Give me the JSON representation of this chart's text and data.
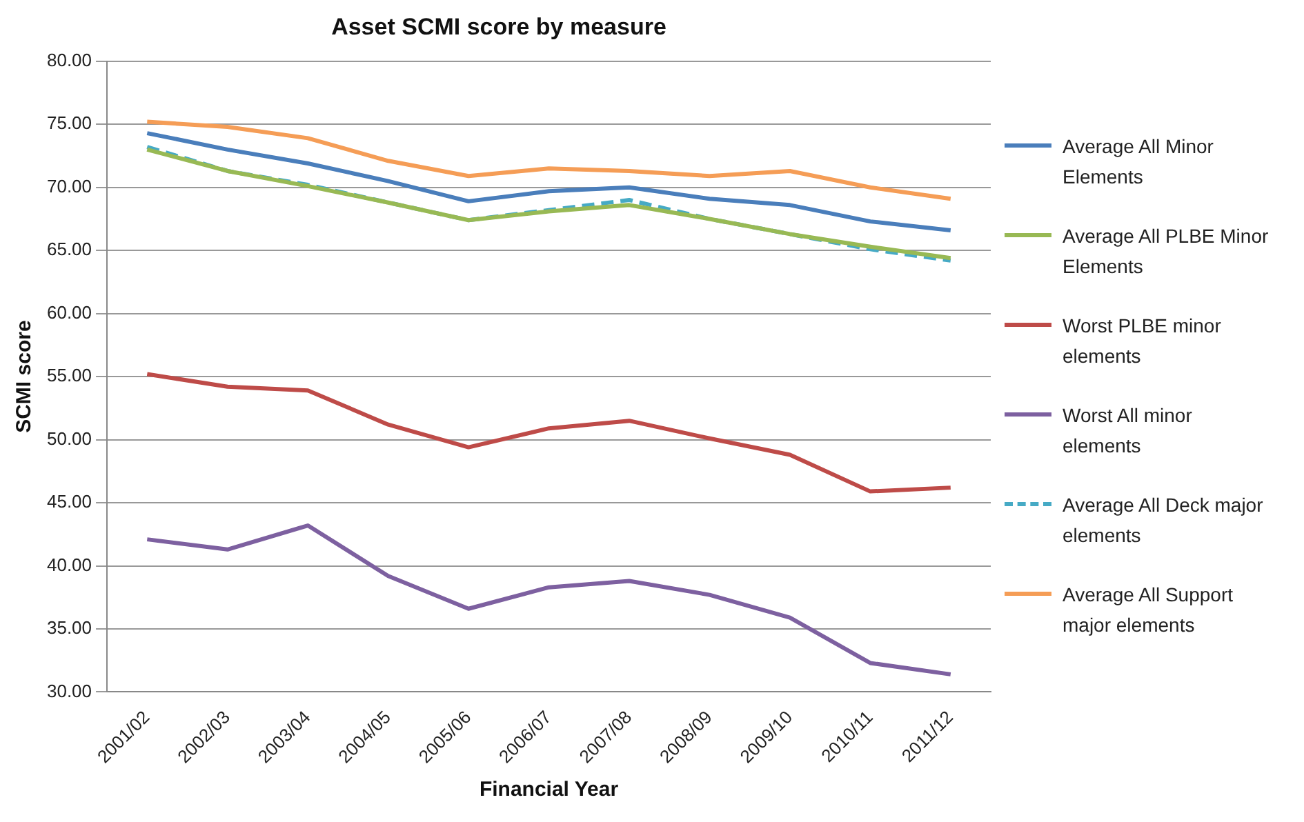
{
  "chart_data": {
    "type": "line",
    "title": "Asset SCMI score by measure",
    "xlabel": "Financial Year",
    "ylabel": "SCMI score",
    "categories": [
      "2001/02",
      "2002/03",
      "2003/04",
      "2004/05",
      "2005/06",
      "2006/07",
      "2007/08",
      "2008/09",
      "2009/10",
      "2010/11",
      "2011/12"
    ],
    "ylim": [
      30,
      80
    ],
    "yticks": [
      {
        "value": 30,
        "label": "30.00"
      },
      {
        "value": 35,
        "label": "35.00"
      },
      {
        "value": 40,
        "label": "40.00"
      },
      {
        "value": 45,
        "label": "45.00"
      },
      {
        "value": 50,
        "label": "50.00"
      },
      {
        "value": 55,
        "label": "55.00"
      },
      {
        "value": 60,
        "label": "60.00"
      },
      {
        "value": 65,
        "label": "65.00"
      },
      {
        "value": 70,
        "label": "70.00"
      },
      {
        "value": 75,
        "label": "75.00"
      },
      {
        "value": 80,
        "label": "80.00"
      }
    ],
    "grid": "y",
    "legend": "right",
    "marker": "none",
    "line_style": "solid",
    "series": [
      {
        "name": "Average All Minor Elements",
        "color": "#4a7ebb",
        "values": [
          74.3,
          73.0,
          71.9,
          70.5,
          68.9,
          69.7,
          70.0,
          69.1,
          68.6,
          67.3,
          66.6
        ]
      },
      {
        "name": "Average All PLBE Minor Elements",
        "color": "#98b954",
        "values": [
          73.0,
          71.3,
          70.1,
          68.8,
          67.4,
          68.1,
          68.6,
          67.5,
          66.3,
          65.3,
          64.4
        ]
      },
      {
        "name": "Worst PLBE minor elements",
        "color": "#be4b48",
        "values": [
          55.2,
          54.2,
          53.9,
          51.2,
          49.4,
          50.9,
          51.5,
          50.1,
          48.8,
          45.9,
          46.2
        ]
      },
      {
        "name": "Worst All minor elements",
        "color": "#7d60a0",
        "values": [
          42.1,
          41.3,
          43.2,
          39.2,
          36.6,
          38.3,
          38.8,
          37.7,
          35.9,
          32.3,
          31.4
        ]
      },
      {
        "name": "Average All Deck major elements",
        "color": "#46aac5",
        "line_style": "dashed",
        "values": [
          73.2,
          71.3,
          70.2,
          68.8,
          67.4,
          68.2,
          69.0,
          67.5,
          66.3,
          65.1,
          64.2
        ]
      },
      {
        "name": "Average All Support major elements",
        "color": "#f59d56",
        "values": [
          75.2,
          74.8,
          73.9,
          72.1,
          70.9,
          71.5,
          71.3,
          70.9,
          71.3,
          70.0,
          69.1
        ]
      }
    ]
  }
}
